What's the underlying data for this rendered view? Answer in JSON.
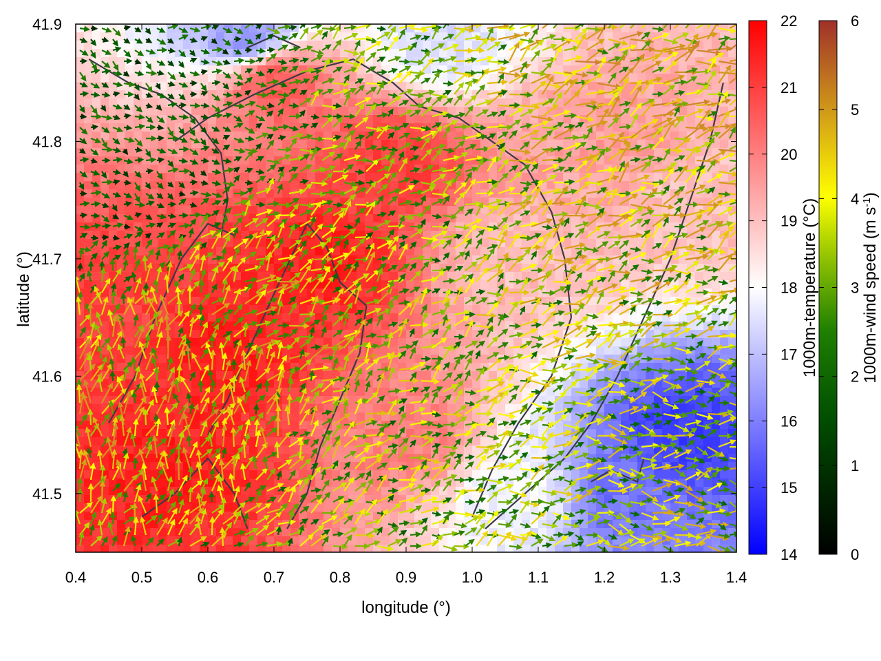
{
  "chart_data": {
    "type": "heatmap",
    "title": "",
    "xlabel": "longitude (°)",
    "ylabel": "latitude (°)",
    "xlim": [
      0.4,
      1.4
    ],
    "ylim": [
      41.45,
      41.9
    ],
    "x_ticks": [
      0.4,
      0.5,
      0.6,
      0.7,
      0.8,
      0.9,
      1.0,
      1.1,
      1.2,
      1.3,
      1.4
    ],
    "x_tick_labels": [
      "0.4",
      "0.5",
      "0.6",
      "0.7",
      "0.8",
      "0.9",
      "1.0",
      "1.1",
      "1.2",
      "1.3",
      "1.4"
    ],
    "y_ticks": [
      41.5,
      41.6,
      41.7,
      41.8,
      41.9
    ],
    "y_tick_labels": [
      "41.5",
      "41.6",
      "41.7",
      "41.8",
      "41.9"
    ],
    "grid": false,
    "temperature": {
      "label": "1000m-temperature (°C)",
      "range": [
        14,
        22
      ],
      "ticks": [
        14,
        15,
        16,
        17,
        18,
        19,
        20,
        21,
        22
      ],
      "tick_labels": [
        "14",
        "15",
        "16",
        "17",
        "18",
        "19",
        "20",
        "21",
        "22"
      ],
      "colormap": [
        "#0000ff",
        "#ffffff",
        "#ff0000"
      ],
      "field_centers": [
        {
          "lon": 0.47,
          "lat": 41.65,
          "value": 21.0
        },
        {
          "lon": 0.62,
          "lat": 41.62,
          "value": 21.5
        },
        {
          "lon": 0.78,
          "lat": 41.7,
          "value": 21.5
        },
        {
          "lon": 0.88,
          "lat": 41.78,
          "value": 21.0
        },
        {
          "lon": 0.7,
          "lat": 41.85,
          "value": 20.5
        },
        {
          "lon": 0.55,
          "lat": 41.52,
          "value": 21.5
        },
        {
          "lon": 0.9,
          "lat": 41.55,
          "value": 20.0
        },
        {
          "lon": 1.05,
          "lat": 41.7,
          "value": 19.0
        },
        {
          "lon": 1.2,
          "lat": 41.8,
          "value": 19.5
        },
        {
          "lon": 1.32,
          "lat": 41.55,
          "value": 15.0
        },
        {
          "lon": 1.22,
          "lat": 41.5,
          "value": 15.8
        },
        {
          "lon": 1.08,
          "lat": 41.5,
          "value": 17.8
        },
        {
          "lon": 0.66,
          "lat": 41.89,
          "value": 16.5
        },
        {
          "lon": 0.95,
          "lat": 41.89,
          "value": 17.5
        },
        {
          "lon": 1.35,
          "lat": 41.75,
          "value": 19.0
        }
      ]
    },
    "wind_speed": {
      "label_main": "1000m-wind speed (m s",
      "label_sup": "-1",
      "label_end": ")",
      "range": [
        0,
        6
      ],
      "ticks": [
        0,
        1,
        2,
        3,
        4,
        5,
        6
      ],
      "tick_labels": [
        "0",
        "1",
        "2",
        "3",
        "4",
        "5",
        "6"
      ],
      "colormap": [
        "#000000",
        "#006400",
        "#4c9a00",
        "#ffff00",
        "#d4a017",
        "#cd7f32",
        "#a0302a"
      ],
      "prevailing": [
        {
          "lon": 0.55,
          "lat": 41.6,
          "u": 0.5,
          "v": 3.5
        },
        {
          "lon": 0.75,
          "lat": 41.65,
          "u": 2.5,
          "v": 2.0
        },
        {
          "lon": 0.9,
          "lat": 41.75,
          "u": 2.0,
          "v": 1.0
        },
        {
          "lon": 1.15,
          "lat": 41.75,
          "u": 3.0,
          "v": 1.5
        },
        {
          "lon": 1.25,
          "lat": 41.5,
          "u": 3.0,
          "v": 0.0
        },
        {
          "lon": 1.0,
          "lat": 41.5,
          "u": 2.5,
          "v": 1.0
        },
        {
          "lon": 0.45,
          "lat": 41.8,
          "u": 1.0,
          "v": -0.5
        },
        {
          "lon": 1.3,
          "lat": 41.88,
          "u": 3.5,
          "v": 1.5
        }
      ]
    },
    "contours": [
      [
        [
          0.42,
          41.87
        ],
        [
          0.48,
          41.85
        ],
        [
          0.53,
          41.84
        ],
        [
          0.58,
          41.82
        ],
        [
          0.62,
          41.79
        ],
        [
          0.63,
          41.75
        ],
        [
          0.62,
          41.72
        ]
      ],
      [
        [
          0.6,
          41.55
        ],
        [
          0.63,
          41.58
        ],
        [
          0.66,
          41.62
        ],
        [
          0.7,
          41.67
        ],
        [
          0.75,
          41.73
        ],
        [
          0.78,
          41.71
        ],
        [
          0.8,
          41.68
        ],
        [
          0.84,
          41.66
        ]
      ],
      [
        [
          0.84,
          41.66
        ],
        [
          0.83,
          41.62
        ],
        [
          0.8,
          41.58
        ],
        [
          0.77,
          41.54
        ],
        [
          0.75,
          41.5
        ],
        [
          0.72,
          41.47
        ]
      ],
      [
        [
          0.55,
          41.8
        ],
        [
          0.6,
          41.82
        ],
        [
          0.67,
          41.84
        ],
        [
          0.75,
          41.86
        ],
        [
          0.82,
          41.87
        ],
        [
          0.88,
          41.85
        ],
        [
          0.92,
          41.83
        ],
        [
          0.98,
          41.82
        ],
        [
          1.03,
          41.8
        ],
        [
          1.08,
          41.78
        ],
        [
          1.12,
          41.74
        ],
        [
          1.14,
          41.7
        ],
        [
          1.15,
          41.65
        ]
      ],
      [
        [
          1.15,
          41.65
        ],
        [
          1.12,
          41.6
        ],
        [
          1.07,
          41.56
        ],
        [
          1.03,
          41.52
        ],
        [
          1.0,
          41.48
        ]
      ],
      [
        [
          0.45,
          41.56
        ],
        [
          0.49,
          41.6
        ],
        [
          0.52,
          41.65
        ],
        [
          0.56,
          41.7
        ],
        [
          0.6,
          41.73
        ],
        [
          0.64,
          41.72
        ]
      ],
      [
        [
          1.02,
          41.47
        ],
        [
          1.08,
          41.5
        ],
        [
          1.14,
          41.53
        ],
        [
          1.18,
          41.56
        ],
        [
          1.22,
          41.6
        ],
        [
          1.26,
          41.65
        ],
        [
          1.3,
          41.7
        ],
        [
          1.33,
          41.75
        ],
        [
          1.36,
          41.8
        ],
        [
          1.38,
          41.85
        ]
      ],
      [
        [
          1.18,
          41.51
        ],
        [
          1.21,
          41.52
        ],
        [
          1.25,
          41.51
        ],
        [
          1.26,
          41.53
        ]
      ],
      [
        [
          0.66,
          41.88
        ],
        [
          0.7,
          41.89
        ],
        [
          0.74,
          41.88
        ]
      ],
      [
        [
          0.5,
          41.48
        ],
        [
          0.55,
          41.5
        ],
        [
          0.6,
          41.53
        ],
        [
          0.64,
          41.5
        ],
        [
          0.66,
          41.47
        ]
      ]
    ]
  }
}
